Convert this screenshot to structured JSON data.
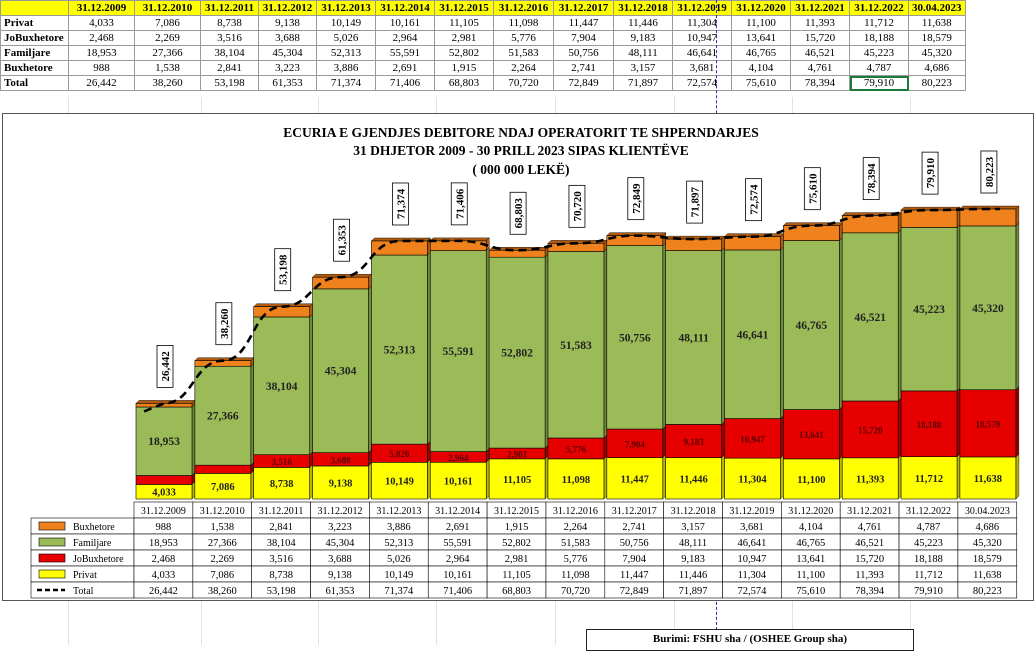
{
  "sheet": {
    "headers": [
      "31.12.2009",
      "31.12.2010",
      "31.12.2011",
      "31.12.2012",
      "31.12.2013",
      "31.12.2014",
      "31.12.2015",
      "31.12.2016",
      "31.12.2017",
      "31.12.2018",
      "31.12.2019",
      "31.12.2020",
      "31.12.2021",
      "31.12.2022",
      "30.04.2023"
    ],
    "rows": [
      {
        "label": "Privat",
        "values": [
          "4,033",
          "7,086",
          "8,738",
          "9,138",
          "10,149",
          "10,161",
          "11,105",
          "11,098",
          "11,447",
          "11,446",
          "11,304",
          "11,100",
          "11,393",
          "11,712",
          "11,638"
        ]
      },
      {
        "label": "JoBuxhetore",
        "values": [
          "2,468",
          "2,269",
          "3,516",
          "3,688",
          "5,026",
          "2,964",
          "2,981",
          "5,776",
          "7,904",
          "9,183",
          "10,947",
          "13,641",
          "15,720",
          "18,188",
          "18,579"
        ]
      },
      {
        "label": "Familjare",
        "values": [
          "18,953",
          "27,366",
          "38,104",
          "45,304",
          "52,313",
          "55,591",
          "52,802",
          "51,583",
          "50,756",
          "48,111",
          "46,641",
          "46,765",
          "46,521",
          "45,223",
          "45,320"
        ]
      },
      {
        "label": "Buxhetore",
        "values": [
          "988",
          "1,538",
          "2,841",
          "3,223",
          "3,886",
          "2,691",
          "1,915",
          "2,264",
          "2,741",
          "3,157",
          "3,681",
          "4,104",
          "4,761",
          "4,787",
          "4,686"
        ]
      },
      {
        "label": "Total",
        "values": [
          "26,442",
          "38,260",
          "53,198",
          "61,353",
          "71,374",
          "71,406",
          "68,803",
          "70,720",
          "72,849",
          "71,897",
          "72,574",
          "75,610",
          "78,394",
          "79,910",
          "80,223"
        ]
      }
    ]
  },
  "chart_data": {
    "type": "bar",
    "stacked": true,
    "title": [
      "ECURIA E GJENDJES DEBITORE NDAJ OPERATORIT TE SHPERNDARJES",
      "31 DHJETOR 2009  - 30  PRILL 2023 SIPAS KLIENTËVE",
      "( 000 000 LEKË)"
    ],
    "categories": [
      "31.12.2009",
      "31.12.2010",
      "31.12.2011",
      "31.12.2012",
      "31.12.2013",
      "31.12.2014",
      "31.12.2015",
      "31.12.2016",
      "31.12.2017",
      "31.12.2018",
      "31.12.2019",
      "31.12.2020",
      "31.12.2021",
      "31.12.2022",
      "30.04.2023"
    ],
    "series": [
      {
        "name": "Privat",
        "color": "#ffff00",
        "values": [
          4033,
          7086,
          8738,
          9138,
          10149,
          10161,
          11105,
          11098,
          11447,
          11446,
          11304,
          11100,
          11393,
          11712,
          11638
        ]
      },
      {
        "name": "JoBuxhetore",
        "color": "#e60000",
        "values": [
          2468,
          2269,
          3516,
          3688,
          5026,
          2964,
          2981,
          5776,
          7904,
          9183,
          10947,
          13641,
          15720,
          18188,
          18579
        ]
      },
      {
        "name": "Familjare",
        "color": "#9bbb59",
        "values": [
          18953,
          27366,
          38104,
          45304,
          52313,
          55591,
          52802,
          51583,
          50756,
          48111,
          46641,
          46765,
          46521,
          45223,
          45320
        ]
      },
      {
        "name": "Buxhetore",
        "color": "#f0821e",
        "values": [
          988,
          1538,
          2841,
          3223,
          3886,
          2691,
          1915,
          2264,
          2741,
          3157,
          3681,
          4104,
          4761,
          4787,
          4686
        ]
      }
    ],
    "total": {
      "name": "Total",
      "values": [
        26442,
        38260,
        53198,
        61353,
        71374,
        71406,
        68803,
        70720,
        72849,
        71897,
        72574,
        75610,
        78394,
        79910,
        80223
      ]
    },
    "data_table": [
      {
        "name": "Buxhetore",
        "color": "#f0821e",
        "values": [
          "988",
          "1,538",
          "2,841",
          "3,223",
          "3,886",
          "2,691",
          "1,915",
          "2,264",
          "2,741",
          "3,157",
          "3,681",
          "4,104",
          "4,761",
          "4,787",
          "4,686"
        ]
      },
      {
        "name": "Familjare",
        "color": "#9bbb59",
        "values": [
          "18,953",
          "27,366",
          "38,104",
          "45,304",
          "52,313",
          "55,591",
          "52,802",
          "51,583",
          "50,756",
          "48,111",
          "46,641",
          "46,765",
          "46,521",
          "45,223",
          "45,320"
        ]
      },
      {
        "name": "JoBuxhetore",
        "color": "#e60000",
        "values": [
          "2,468",
          "2,269",
          "3,516",
          "3,688",
          "5,026",
          "2,964",
          "2,981",
          "5,776",
          "7,904",
          "9,183",
          "10,947",
          "13,641",
          "15,720",
          "18,188",
          "18,579"
        ]
      },
      {
        "name": "Privat",
        "color": "#ffff00",
        "values": [
          "4,033",
          "7,086",
          "8,738",
          "9,138",
          "10,149",
          "10,161",
          "11,105",
          "11,098",
          "11,447",
          "11,446",
          "11,304",
          "11,100",
          "11,393",
          "11,712",
          "11,638"
        ]
      },
      {
        "name": "Total",
        "color": "#000000",
        "values": [
          "26,442",
          "38,260",
          "53,198",
          "61,353",
          "71,374",
          "71,406",
          "68,803",
          "70,720",
          "72,849",
          "71,897",
          "72,574",
          "75,610",
          "78,394",
          "79,910",
          "80,223"
        ]
      }
    ],
    "ylim": [
      0,
      80223
    ],
    "legend": "bottom-data-table"
  },
  "source": "Burimi: FSHU sha / (OSHEE Group sha)"
}
